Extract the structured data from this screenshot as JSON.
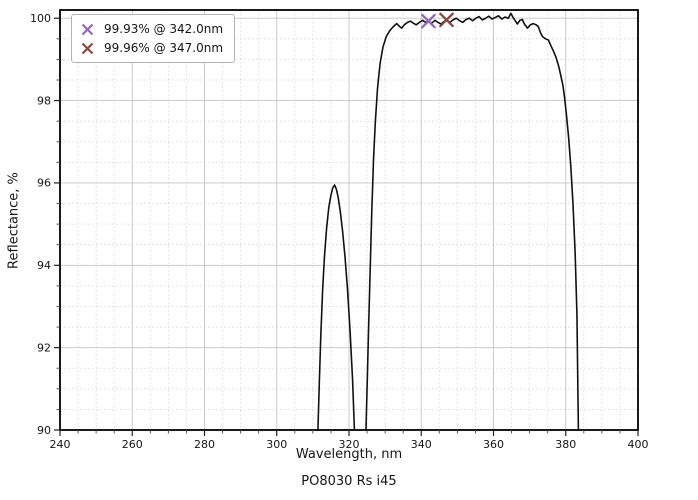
{
  "figure_title": "PO8030 Rs i45",
  "legend": {
    "entries": [
      {
        "label": "99.93% @ 342.0nm",
        "color": "#9467bd"
      },
      {
        "label": "99.96% @ 347.0nm",
        "color": "#8b4540"
      }
    ]
  },
  "chart_data": {
    "type": "line",
    "title": "PO8030 Rs i45",
    "xlabel": "Wavelength, nm",
    "ylabel": "Reflectance, %",
    "xlim": [
      240,
      400
    ],
    "ylim": [
      90,
      100.2
    ],
    "x_major_ticks": [
      240,
      260,
      280,
      300,
      320,
      340,
      360,
      380,
      400
    ],
    "y_major_ticks": [
      90,
      92,
      94,
      96,
      98,
      100
    ],
    "x_minor_step": 5,
    "y_minor_step": 0.5,
    "grid": true,
    "legend_position": "upper left",
    "line_color": "#111111",
    "major_grid_color": "#c4c4c4",
    "minor_grid_color": "#d4d4d4",
    "frame_color": "#000000",
    "series": [
      {
        "name": "reflectance-curve",
        "color": "#111111",
        "segments": [
          [
            [
              311.4,
              90
            ],
            [
              311.8,
              91.2
            ],
            [
              312.2,
              92.3
            ],
            [
              312.7,
              93.4
            ],
            [
              313.2,
              94.2
            ],
            [
              313.8,
              94.9
            ],
            [
              314.4,
              95.4
            ],
            [
              315.0,
              95.7
            ],
            [
              315.5,
              95.88
            ],
            [
              316.0,
              95.95
            ],
            [
              316.5,
              95.85
            ],
            [
              317.0,
              95.65
            ],
            [
              317.6,
              95.3
            ],
            [
              318.2,
              94.85
            ],
            [
              318.9,
              94.2
            ],
            [
              319.6,
              93.4
            ],
            [
              320.3,
              92.4
            ],
            [
              321.0,
              91.2
            ],
            [
              321.5,
              90
            ]
          ],
          [
            [
              324.7,
              90
            ],
            [
              325.0,
              91.0
            ],
            [
              325.4,
              92.4
            ],
            [
              325.9,
              94.0
            ],
            [
              326.3,
              95.3
            ],
            [
              326.8,
              96.6
            ],
            [
              327.3,
              97.5
            ],
            [
              327.9,
              98.3
            ],
            [
              328.6,
              98.9
            ],
            [
              329.4,
              99.3
            ],
            [
              330.3,
              99.55
            ],
            [
              331.3,
              99.7
            ],
            [
              332.3,
              99.8
            ],
            [
              333.2,
              99.87
            ],
            [
              334.0,
              99.8
            ],
            [
              334.6,
              99.76
            ],
            [
              335.3,
              99.84
            ],
            [
              336.2,
              99.9
            ],
            [
              337.0,
              99.93
            ],
            [
              337.8,
              99.88
            ],
            [
              338.6,
              99.84
            ],
            [
              339.5,
              99.9
            ],
            [
              340.4,
              99.95
            ],
            [
              341.2,
              99.9
            ],
            [
              342.0,
              99.93
            ],
            [
              342.9,
              99.88
            ],
            [
              343.8,
              99.95
            ],
            [
              344.6,
              99.9
            ],
            [
              345.5,
              99.86
            ],
            [
              346.3,
              99.92
            ],
            [
              347.0,
              99.96
            ],
            [
              347.9,
              99.9
            ],
            [
              348.8,
              99.96
            ],
            [
              349.7,
              100.0
            ],
            [
              350.6,
              99.94
            ],
            [
              351.5,
              99.9
            ],
            [
              352.4,
              99.97
            ],
            [
              353.3,
              100.0
            ],
            [
              354.2,
              99.94
            ],
            [
              355.1,
              100.0
            ],
            [
              356.0,
              100.04
            ],
            [
              356.9,
              99.96
            ],
            [
              357.8,
              100.0
            ],
            [
              358.7,
              100.05
            ],
            [
              359.6,
              99.98
            ],
            [
              360.5,
              100.02
            ],
            [
              361.4,
              100.06
            ],
            [
              362.3,
              99.98
            ],
            [
              363.2,
              100.03
            ],
            [
              364.1,
              100.0
            ],
            [
              364.8,
              100.12
            ],
            [
              365.4,
              100.02
            ],
            [
              366.0,
              99.94
            ],
            [
              366.6,
              99.86
            ],
            [
              367.3,
              99.95
            ],
            [
              368.0,
              99.97
            ],
            [
              368.6,
              99.85
            ],
            [
              369.4,
              99.76
            ],
            [
              370.2,
              99.84
            ],
            [
              371.0,
              99.87
            ],
            [
              371.8,
              99.84
            ],
            [
              372.4,
              99.8
            ],
            [
              373.0,
              99.65
            ],
            [
              373.6,
              99.55
            ],
            [
              374.4,
              99.5
            ],
            [
              375.2,
              99.47
            ],
            [
              375.9,
              99.33
            ],
            [
              376.6,
              99.2
            ],
            [
              377.3,
              99.05
            ],
            [
              378.0,
              98.85
            ],
            [
              378.6,
              98.62
            ],
            [
              379.2,
              98.38
            ],
            [
              379.7,
              98.05
            ],
            [
              380.2,
              97.65
            ],
            [
              380.8,
              97.1
            ],
            [
              381.4,
              96.4
            ],
            [
              382.0,
              95.5
            ],
            [
              382.6,
              94.3
            ],
            [
              383.1,
              92.8
            ],
            [
              383.5,
              90
            ]
          ]
        ]
      }
    ],
    "markers": [
      {
        "x": 342.0,
        "y": 99.93,
        "color": "#9467bd",
        "label": "99.93% @ 342.0nm"
      },
      {
        "x": 347.0,
        "y": 99.96,
        "color": "#8b4540",
        "label": "99.96% @ 347.0nm"
      }
    ]
  }
}
